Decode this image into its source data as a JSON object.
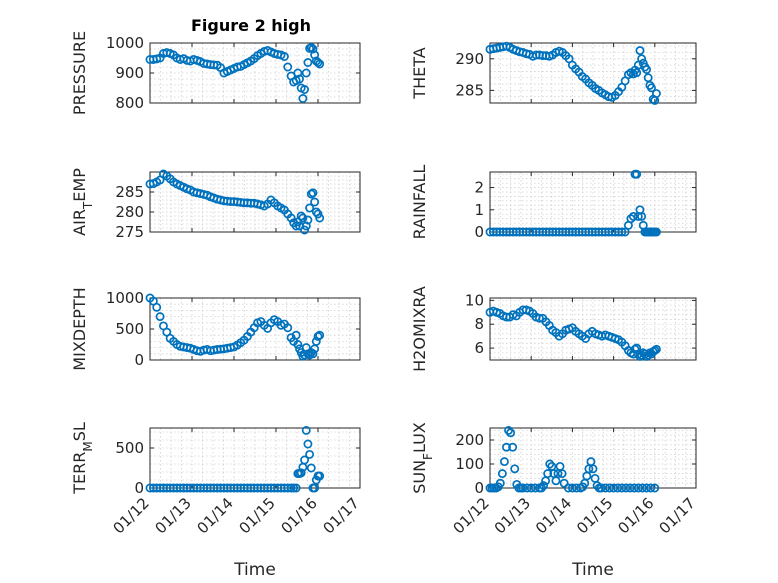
{
  "figure": {
    "title": "Figure 2 high"
  },
  "colors": {
    "marker": "#0072BD",
    "axis": "#262626",
    "grid": "#cfcfcf"
  },
  "chart_data": [
    {
      "type": "scatter",
      "marker": "circle",
      "ylabel": "PRESSURE",
      "xlabel": "",
      "xlim": [
        "01/12",
        "01/17"
      ],
      "ylim": [
        800,
        1000
      ],
      "yticks": [
        800,
        900,
        1000
      ],
      "xticks": [],
      "x": [
        12.0,
        12.08,
        12.16,
        12.24,
        12.32,
        12.4,
        12.48,
        12.56,
        12.64,
        12.72,
        12.8,
        12.88,
        12.96,
        13.04,
        13.12,
        13.2,
        13.28,
        13.36,
        13.44,
        13.52,
        13.6,
        13.68,
        13.76,
        13.84,
        13.92,
        14.0,
        14.08,
        14.16,
        14.24,
        14.32,
        14.4,
        14.48,
        14.56,
        14.64,
        14.72,
        14.8,
        14.88,
        14.96,
        15.04,
        15.12,
        15.2,
        15.28,
        15.36,
        15.42,
        15.48,
        15.52,
        15.56,
        15.6,
        15.64,
        15.68,
        15.72,
        15.76,
        15.8,
        15.84,
        15.88,
        15.92,
        15.96,
        16.0,
        16.04
      ],
      "y": [
        945,
        945,
        947,
        950,
        965,
        968,
        965,
        960,
        950,
        945,
        948,
        942,
        940,
        945,
        942,
        938,
        932,
        930,
        928,
        927,
        926,
        918,
        900,
        905,
        910,
        915,
        920,
        922,
        928,
        934,
        940,
        948,
        958,
        965,
        972,
        975,
        970,
        965,
        962,
        960,
        955,
        920,
        890,
        870,
        875,
        900,
        880,
        850,
        815,
        845,
        900,
        935,
        982,
        985,
        980,
        960,
        940,
        935,
        930
      ]
    },
    {
      "type": "scatter",
      "marker": "circle",
      "ylabel": "THETA",
      "xlabel": "",
      "xlim": [
        "01/12",
        "01/17"
      ],
      "ylim": [
        283,
        292.5
      ],
      "yticks": [
        285,
        290
      ],
      "xticks": [],
      "x": [
        12.0,
        12.08,
        12.16,
        12.24,
        12.32,
        12.4,
        12.48,
        12.56,
        12.64,
        12.72,
        12.8,
        12.88,
        12.96,
        13.04,
        13.12,
        13.2,
        13.28,
        13.36,
        13.44,
        13.52,
        13.6,
        13.68,
        13.76,
        13.84,
        13.92,
        14.0,
        14.08,
        14.16,
        14.24,
        14.32,
        14.4,
        14.48,
        14.56,
        14.64,
        14.72,
        14.8,
        14.88,
        14.96,
        15.04,
        15.12,
        15.2,
        15.28,
        15.36,
        15.42,
        15.48,
        15.52,
        15.56,
        15.6,
        15.64,
        15.68,
        15.72,
        15.76,
        15.8,
        15.84,
        15.88,
        15.92,
        15.96,
        16.0,
        16.04
      ],
      "y": [
        291.5,
        291.6,
        291.7,
        291.8,
        291.9,
        292.0,
        291.8,
        291.5,
        291.3,
        291.1,
        291.0,
        290.8,
        290.7,
        290.4,
        290.6,
        290.6,
        290.5,
        290.5,
        290.4,
        290.6,
        291.0,
        291.2,
        291.0,
        290.5,
        290.0,
        289.0,
        288.4,
        287.9,
        287.2,
        286.8,
        286.2,
        285.8,
        285.3,
        285.0,
        284.6,
        284.3,
        284.0,
        283.9,
        284.2,
        284.8,
        285.5,
        286.5,
        287.5,
        287.8,
        287.6,
        288.2,
        287.8,
        289.0,
        291.3,
        290.0,
        289.3,
        288.7,
        288.3,
        287.0,
        285.8,
        285.4,
        283.6,
        283.4,
        284.5
      ]
    },
    {
      "type": "scatter",
      "marker": "circle",
      "ylabel": "AIR_TEMP",
      "xlabel": "",
      "xlim": [
        "01/12",
        "01/17"
      ],
      "ylim": [
        275,
        290
      ],
      "yticks": [
        275,
        280,
        285
      ],
      "xticks": [],
      "x": [
        12.0,
        12.08,
        12.16,
        12.24,
        12.32,
        12.4,
        12.48,
        12.56,
        12.64,
        12.72,
        12.8,
        12.88,
        12.96,
        13.04,
        13.12,
        13.2,
        13.28,
        13.36,
        13.44,
        13.52,
        13.6,
        13.68,
        13.76,
        13.84,
        13.92,
        14.0,
        14.08,
        14.16,
        14.24,
        14.32,
        14.4,
        14.48,
        14.56,
        14.64,
        14.72,
        14.8,
        14.88,
        14.96,
        15.04,
        15.12,
        15.2,
        15.28,
        15.36,
        15.42,
        15.48,
        15.52,
        15.56,
        15.6,
        15.64,
        15.68,
        15.72,
        15.76,
        15.8,
        15.84,
        15.88,
        15.92,
        15.96,
        16.0,
        16.04
      ],
      "y": [
        287.0,
        287.1,
        287.5,
        288.0,
        289.5,
        289.0,
        288.3,
        287.5,
        287.0,
        286.6,
        286.2,
        285.8,
        285.5,
        285.0,
        284.8,
        284.6,
        284.4,
        284.2,
        283.8,
        283.5,
        283.2,
        283.0,
        282.8,
        282.7,
        282.6,
        282.6,
        282.5,
        282.4,
        282.3,
        282.3,
        282.2,
        282.2,
        282.0,
        281.8,
        281.5,
        282.0,
        283.0,
        282.3,
        281.5,
        281.0,
        280.5,
        279.5,
        278.5,
        277.3,
        276.5,
        277.5,
        276.5,
        279.0,
        278.5,
        275.5,
        276.5,
        278.0,
        281.0,
        284.5,
        284.8,
        282.5,
        280.0,
        279.5,
        278.5
      ]
    },
    {
      "type": "scatter",
      "marker": "circle",
      "ylabel": "RAINFALL",
      "xlabel": "",
      "xlim": [
        "01/12",
        "01/17"
      ],
      "ylim": [
        0,
        2.7
      ],
      "yticks": [
        0,
        1,
        2
      ],
      "xticks": [],
      "x": [
        12.0,
        12.08,
        12.16,
        12.24,
        12.32,
        12.4,
        12.48,
        12.56,
        12.64,
        12.72,
        12.8,
        12.88,
        12.96,
        13.04,
        13.12,
        13.2,
        13.28,
        13.36,
        13.44,
        13.52,
        13.6,
        13.68,
        13.76,
        13.84,
        13.92,
        14.0,
        14.08,
        14.16,
        14.24,
        14.32,
        14.4,
        14.48,
        14.56,
        14.64,
        14.72,
        14.8,
        14.88,
        14.96,
        15.04,
        15.12,
        15.2,
        15.28,
        15.36,
        15.42,
        15.48,
        15.52,
        15.56,
        15.6,
        15.64,
        15.68,
        15.72,
        15.76,
        15.8,
        15.84,
        15.88,
        15.92,
        15.96,
        16.0,
        16.04
      ],
      "y": [
        0,
        0,
        0,
        0,
        0,
        0,
        0,
        0,
        0,
        0,
        0,
        0,
        0,
        0,
        0,
        0,
        0,
        0,
        0,
        0,
        0,
        0,
        0,
        0,
        0,
        0,
        0,
        0,
        0,
        0,
        0,
        0,
        0,
        0,
        0,
        0,
        0,
        0,
        0,
        0,
        0,
        0,
        0.3,
        0.6,
        0.7,
        2.6,
        2.6,
        0.7,
        1.0,
        0.7,
        0.3,
        0,
        0,
        0,
        0,
        0,
        0,
        0,
        0
      ]
    },
    {
      "type": "scatter",
      "marker": "circle",
      "ylabel": "MIXDEPTH",
      "xlabel": "",
      "xlim": [
        "01/12",
        "01/17"
      ],
      "ylim": [
        0,
        1000
      ],
      "yticks": [
        0,
        500,
        1000
      ],
      "xticks": [],
      "x": [
        12.0,
        12.08,
        12.16,
        12.24,
        12.32,
        12.4,
        12.48,
        12.56,
        12.64,
        12.72,
        12.8,
        12.88,
        12.96,
        13.04,
        13.12,
        13.2,
        13.28,
        13.36,
        13.44,
        13.52,
        13.6,
        13.68,
        13.76,
        13.84,
        13.92,
        14.0,
        14.08,
        14.16,
        14.24,
        14.32,
        14.4,
        14.48,
        14.56,
        14.64,
        14.72,
        14.8,
        14.88,
        14.96,
        15.04,
        15.12,
        15.2,
        15.28,
        15.36,
        15.42,
        15.48,
        15.52,
        15.56,
        15.6,
        15.64,
        15.68,
        15.72,
        15.76,
        15.8,
        15.84,
        15.88,
        15.92,
        15.96,
        16.0,
        16.04
      ],
      "y": [
        1000,
        950,
        850,
        700,
        550,
        450,
        350,
        300,
        250,
        220,
        210,
        200,
        190,
        170,
        150,
        140,
        160,
        170,
        150,
        160,
        170,
        175,
        180,
        190,
        200,
        210,
        240,
        280,
        320,
        380,
        450,
        520,
        600,
        620,
        560,
        510,
        600,
        650,
        620,
        560,
        580,
        520,
        360,
        300,
        400,
        250,
        180,
        120,
        60,
        80,
        200,
        100,
        80,
        120,
        100,
        180,
        300,
        380,
        400
      ]
    },
    {
      "type": "scatter",
      "marker": "circle",
      "ylabel": "H2OMIXRA",
      "xlabel": "",
      "xlim": [
        "01/12",
        "01/17"
      ],
      "ylim": [
        5,
        10.2
      ],
      "yticks": [
        6,
        8,
        10
      ],
      "xticks": [],
      "x": [
        12.0,
        12.08,
        12.16,
        12.24,
        12.32,
        12.4,
        12.48,
        12.56,
        12.64,
        12.72,
        12.8,
        12.88,
        12.96,
        13.04,
        13.12,
        13.2,
        13.28,
        13.36,
        13.44,
        13.52,
        13.6,
        13.68,
        13.76,
        13.84,
        13.92,
        14.0,
        14.08,
        14.16,
        14.24,
        14.32,
        14.4,
        14.48,
        14.56,
        14.64,
        14.72,
        14.8,
        14.88,
        14.96,
        15.04,
        15.12,
        15.2,
        15.28,
        15.36,
        15.42,
        15.48,
        15.52,
        15.56,
        15.6,
        15.64,
        15.68,
        15.72,
        15.76,
        15.8,
        15.84,
        15.88,
        15.92,
        15.96,
        16.0,
        16.04
      ],
      "y": [
        9.0,
        9.1,
        9.0,
        8.9,
        8.7,
        8.6,
        8.6,
        8.8,
        8.7,
        9.0,
        9.2,
        9.2,
        9.1,
        8.9,
        8.6,
        8.5,
        8.5,
        8.2,
        7.9,
        7.5,
        7.3,
        7.0,
        7.2,
        7.5,
        7.6,
        7.7,
        7.4,
        7.2,
        7.0,
        6.8,
        7.2,
        7.4,
        7.2,
        7.1,
        7.0,
        7.1,
        7.0,
        6.9,
        6.8,
        6.7,
        6.5,
        6.2,
        5.8,
        5.6,
        5.5,
        5.9,
        6.0,
        5.5,
        5.3,
        5.4,
        5.6,
        5.5,
        5.3,
        5.4,
        5.6,
        5.5,
        5.7,
        5.8,
        5.9
      ]
    },
    {
      "type": "scatter",
      "marker": "circle",
      "ylabel": "TERR_MSL",
      "xlabel": "Time",
      "xlim": [
        "01/12",
        "01/17"
      ],
      "ylim": [
        0,
        750
      ],
      "yticks": [
        0,
        500
      ],
      "xticks": [
        "01/12",
        "01/13",
        "01/14",
        "01/15",
        "01/16",
        "01/17"
      ],
      "x": [
        12.0,
        12.08,
        12.16,
        12.24,
        12.32,
        12.4,
        12.48,
        12.56,
        12.64,
        12.72,
        12.8,
        12.88,
        12.96,
        13.04,
        13.12,
        13.2,
        13.28,
        13.36,
        13.44,
        13.52,
        13.6,
        13.68,
        13.76,
        13.84,
        13.92,
        14.0,
        14.08,
        14.16,
        14.24,
        14.32,
        14.4,
        14.48,
        14.56,
        14.64,
        14.72,
        14.8,
        14.88,
        14.96,
        15.04,
        15.12,
        15.2,
        15.28,
        15.36,
        15.42,
        15.48,
        15.52,
        15.56,
        15.6,
        15.64,
        15.68,
        15.72,
        15.76,
        15.8,
        15.84,
        15.88,
        15.92,
        15.96,
        16.0,
        16.04
      ],
      "y": [
        0,
        0,
        0,
        0,
        0,
        0,
        0,
        0,
        0,
        0,
        0,
        0,
        0,
        0,
        0,
        0,
        0,
        0,
        0,
        0,
        0,
        0,
        0,
        0,
        0,
        0,
        0,
        0,
        0,
        0,
        0,
        0,
        0,
        0,
        0,
        0,
        0,
        0,
        0,
        0,
        0,
        0,
        0,
        0,
        0,
        180,
        180,
        190,
        260,
        350,
        720,
        550,
        420,
        250,
        0,
        0,
        100,
        150,
        150
      ]
    },
    {
      "type": "scatter",
      "marker": "circle",
      "ylabel": "SUN_FLUX",
      "xlabel": "Time",
      "xlim": [
        "01/12",
        "01/17"
      ],
      "ylim": [
        0,
        250
      ],
      "yticks": [
        0,
        100,
        200
      ],
      "xticks": [
        "01/12",
        "01/13",
        "01/14",
        "01/15",
        "01/16",
        "01/17"
      ],
      "x": [
        12.0,
        12.05,
        12.1,
        12.15,
        12.2,
        12.25,
        12.3,
        12.35,
        12.4,
        12.45,
        12.5,
        12.55,
        12.6,
        12.65,
        12.7,
        12.75,
        12.8,
        12.9,
        13.0,
        13.1,
        13.2,
        13.25,
        13.3,
        13.35,
        13.4,
        13.45,
        13.5,
        13.55,
        13.6,
        13.65,
        13.7,
        13.75,
        13.8,
        13.9,
        14.0,
        14.1,
        14.2,
        14.25,
        14.3,
        14.35,
        14.4,
        14.45,
        14.5,
        14.55,
        14.6,
        14.65,
        14.7,
        14.8,
        14.9,
        15.0,
        15.1,
        15.2,
        15.3,
        15.4,
        15.5,
        15.6,
        15.7,
        15.8,
        15.9,
        16.0
      ],
      "y": [
        0,
        0,
        0,
        0,
        5,
        20,
        60,
        110,
        170,
        240,
        230,
        170,
        80,
        15,
        0,
        0,
        0,
        0,
        0,
        0,
        0,
        0,
        10,
        30,
        60,
        100,
        90,
        60,
        30,
        60,
        90,
        60,
        20,
        0,
        0,
        0,
        0,
        5,
        20,
        50,
        80,
        110,
        80,
        40,
        10,
        0,
        0,
        0,
        0,
        0,
        0,
        0,
        0,
        0,
        0,
        0,
        0,
        0,
        0,
        0
      ]
    }
  ]
}
